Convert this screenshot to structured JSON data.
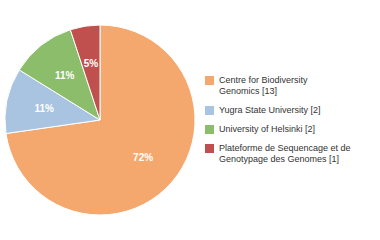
{
  "chart_data": {
    "type": "pie",
    "categories": [
      "Centre for Biodiversity\nGenomics [13]",
      "Yugra State University [2]",
      "University of Helsinki [2]",
      "Plateforme de Sequencage et de\nGenotypage des Genomes [1]"
    ],
    "values": [
      72,
      11,
      11,
      5
    ],
    "value_labels": [
      "72%",
      "11%",
      "11%",
      "5%"
    ],
    "colors": [
      "#F5A86E",
      "#A8C4E0",
      "#8BBD6B",
      "#C0504D"
    ],
    "data_labels": true,
    "legend": "right"
  }
}
